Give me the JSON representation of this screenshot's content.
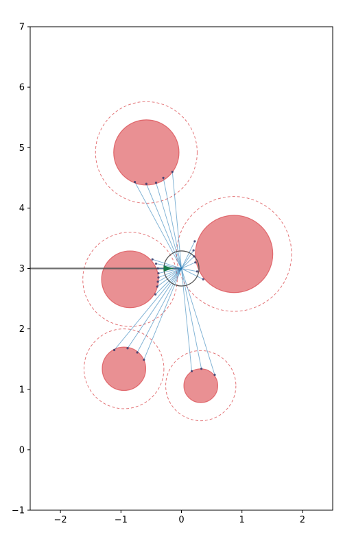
{
  "chart_data": {
    "type": "scatter",
    "title": "",
    "xlabel": "",
    "ylabel": "",
    "xlim": [
      -2.5,
      2.5
    ],
    "ylim": [
      -1,
      7
    ],
    "grid": false,
    "legend": "none",
    "xticks": [
      -2,
      -1,
      0,
      1,
      2
    ],
    "yticks": [
      -1,
      0,
      1,
      2,
      3,
      4,
      5,
      6,
      7
    ],
    "xtick_labels": [
      "−2",
      "−1",
      "0",
      "1",
      "2"
    ],
    "ytick_labels": [
      "−1",
      "0",
      "1",
      "2",
      "3",
      "4",
      "5",
      "6",
      "7"
    ],
    "colors": {
      "obstacle_fill": "#e88a8d",
      "obstacle_edge": "#d9454a",
      "ray": "#1f77b4",
      "hit_point": "#3b3b6b",
      "sensor": "#555555",
      "heading": "#1a7a4a",
      "trail": "#555555"
    },
    "robot": {
      "x": 0.0,
      "y": 3.0,
      "radius": 0.29
    },
    "heading": {
      "x": -0.15,
      "y": 3.0
    },
    "trail": {
      "x": [
        -2.5,
        0.0
      ],
      "y": [
        3.0,
        3.0
      ]
    },
    "obstacles": [
      {
        "x": -0.58,
        "y": 4.92,
        "r": 0.54,
        "margin_r": 0.84
      },
      {
        "x": 0.87,
        "y": 3.24,
        "r": 0.64,
        "margin_r": 0.95
      },
      {
        "x": -0.85,
        "y": 2.82,
        "r": 0.47,
        "margin_r": 0.78
      },
      {
        "x": -0.95,
        "y": 1.34,
        "r": 0.36,
        "margin_r": 0.66
      },
      {
        "x": 0.32,
        "y": 1.06,
        "r": 0.28,
        "margin_r": 0.58
      }
    ],
    "hits": [
      {
        "x": -0.77,
        "y": 4.43
      },
      {
        "x": -0.58,
        "y": 4.4
      },
      {
        "x": -0.42,
        "y": 4.42
      },
      {
        "x": -0.3,
        "y": 4.5
      },
      {
        "x": -0.15,
        "y": 4.6
      },
      {
        "x": 0.22,
        "y": 3.45
      },
      {
        "x": 0.2,
        "y": 3.3
      },
      {
        "x": 0.21,
        "y": 3.2
      },
      {
        "x": 0.23,
        "y": 3.1
      },
      {
        "x": 0.26,
        "y": 2.95
      },
      {
        "x": 0.36,
        "y": 2.82
      },
      {
        "x": -0.48,
        "y": 3.15
      },
      {
        "x": -0.42,
        "y": 3.08
      },
      {
        "x": -0.39,
        "y": 3.0
      },
      {
        "x": -0.38,
        "y": 2.92
      },
      {
        "x": -0.38,
        "y": 2.85
      },
      {
        "x": -0.39,
        "y": 2.78
      },
      {
        "x": -0.4,
        "y": 2.7
      },
      {
        "x": -0.43,
        "y": 2.57
      },
      {
        "x": -1.11,
        "y": 1.65
      },
      {
        "x": -0.89,
        "y": 1.68
      },
      {
        "x": -0.73,
        "y": 1.61
      },
      {
        "x": -0.62,
        "y": 1.49
      },
      {
        "x": 0.17,
        "y": 1.3
      },
      {
        "x": 0.33,
        "y": 1.34
      },
      {
        "x": 0.55,
        "y": 1.24
      }
    ]
  }
}
